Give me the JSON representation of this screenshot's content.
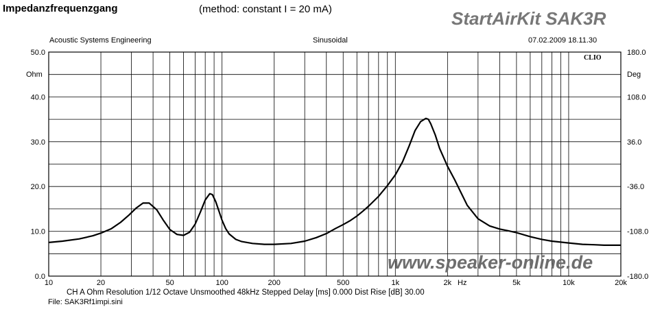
{
  "header": {
    "title": "Impedanzfrequenzgang",
    "method": "(method: constant I = 20 mA)",
    "product": "StartAirKit SAK3R",
    "company": "Acoustic Systems Engineering",
    "mode": "Sinusoidal",
    "datetime": "07.02.2009 18.11.30"
  },
  "footer": {
    "settings": "CH A   Ohm   Resolution 1/12 Octave   Unsmoothed   48kHz   Stepped    Delay [ms] 0.000    Dist Rise [dB] 30.00",
    "file": "File: SAK3Rf1impi.sini"
  },
  "watermark": "www.speaker-online.de",
  "logo": "CLIO",
  "chart_data": {
    "type": "line",
    "x_scale": "log",
    "xlim": [
      10,
      20000
    ],
    "ylim": [
      0,
      50
    ],
    "y2lim": [
      -180,
      180
    ],
    "ylabel": "Ohm",
    "y2label": "Deg",
    "xlabel_unit": "Hz",
    "grid": true,
    "x_tick_labels": [
      {
        "v": 10,
        "t": "10"
      },
      {
        "v": 20,
        "t": "20"
      },
      {
        "v": 50,
        "t": "50"
      },
      {
        "v": 100,
        "t": "100"
      },
      {
        "v": 200,
        "t": "200"
      },
      {
        "v": 500,
        "t": "500"
      },
      {
        "v": 1000,
        "t": "1k"
      },
      {
        "v": 2000,
        "t": "2k"
      },
      {
        "v": 5000,
        "t": "5k"
      },
      {
        "v": 10000,
        "t": "10k"
      },
      {
        "v": 20000,
        "t": "20k"
      }
    ],
    "y_tick_labels": [
      {
        "v": 50,
        "t": "50.0"
      },
      {
        "v": 40,
        "t": "40.0"
      },
      {
        "v": 30,
        "t": "30.0"
      },
      {
        "v": 20,
        "t": "20.0"
      },
      {
        "v": 10,
        "t": "10.0"
      },
      {
        "v": 0,
        "t": "0.0"
      }
    ],
    "y2_tick_labels": [
      {
        "v": 180,
        "t": "180.0"
      },
      {
        "v": 108,
        "t": "108.0"
      },
      {
        "v": 36,
        "t": "36.0"
      },
      {
        "v": -36,
        "t": "-36.0"
      },
      {
        "v": -108,
        "t": "-108.0"
      },
      {
        "v": -180,
        "t": "-180.0"
      }
    ],
    "series": [
      {
        "x": [
          10,
          12,
          15,
          18,
          20,
          23,
          26,
          29,
          32,
          35,
          38,
          42,
          46,
          50,
          55,
          60,
          65,
          70,
          75,
          80,
          85,
          88,
          92,
          96,
          100,
          105,
          110,
          120,
          130,
          150,
          175,
          200,
          250,
          300,
          350,
          400,
          450,
          500,
          550,
          600,
          650,
          700,
          800,
          900,
          1000,
          1100,
          1200,
          1300,
          1400,
          1500,
          1550,
          1600,
          1700,
          1800,
          2000,
          2200,
          2400,
          2600,
          3000,
          3500,
          4000,
          4500,
          5000,
          6000,
          7000,
          8000,
          10000,
          12000,
          14000,
          16000,
          20000
        ],
        "values": [
          7.5,
          7.8,
          8.3,
          9.0,
          9.6,
          10.6,
          12.0,
          13.6,
          15.2,
          16.3,
          16.3,
          14.8,
          12.4,
          10.4,
          9.3,
          9.1,
          9.8,
          11.6,
          14.3,
          17.0,
          18.4,
          18.2,
          16.6,
          14.5,
          12.5,
          10.6,
          9.4,
          8.2,
          7.7,
          7.3,
          7.1,
          7.1,
          7.3,
          7.8,
          8.6,
          9.5,
          10.6,
          11.5,
          12.4,
          13.4,
          14.5,
          15.6,
          17.8,
          20.2,
          22.6,
          25.5,
          29.0,
          32.5,
          34.5,
          35.2,
          35.0,
          34.0,
          31.5,
          28.5,
          24.5,
          21.5,
          18.5,
          15.8,
          12.8,
          11.2,
          10.5,
          10.1,
          9.7,
          8.8,
          8.2,
          7.8,
          7.4,
          7.1,
          7.0,
          6.9,
          6.9
        ]
      }
    ]
  }
}
